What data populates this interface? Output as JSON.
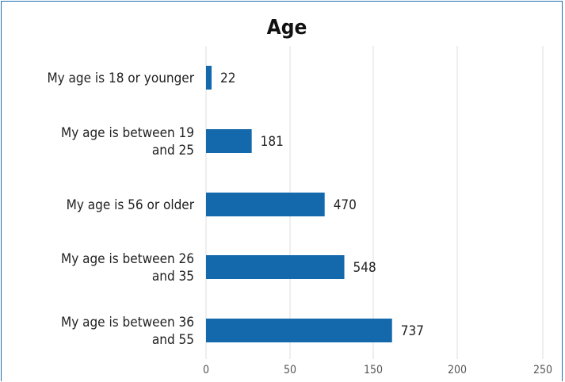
{
  "chart_data": {
    "type": "bar",
    "orientation": "horizontal",
    "title": "Age",
    "categories": [
      [
        "My age is 18 or younger"
      ],
      [
        "My age is between 19",
        "and 25"
      ],
      [
        "My age is 56 or older"
      ],
      [
        "My age is between 26",
        "and 35"
      ],
      [
        "My age is between 36",
        "and 55"
      ]
    ],
    "values": [
      22,
      181,
      470,
      548,
      737
    ],
    "x_ticks": [
      "0",
      "50",
      "150",
      "200",
      "250"
    ],
    "grid": true,
    "bar_color": "#1469ad",
    "grid_color": "#dcdcdc",
    "frame_color": "#1f6fb0"
  }
}
